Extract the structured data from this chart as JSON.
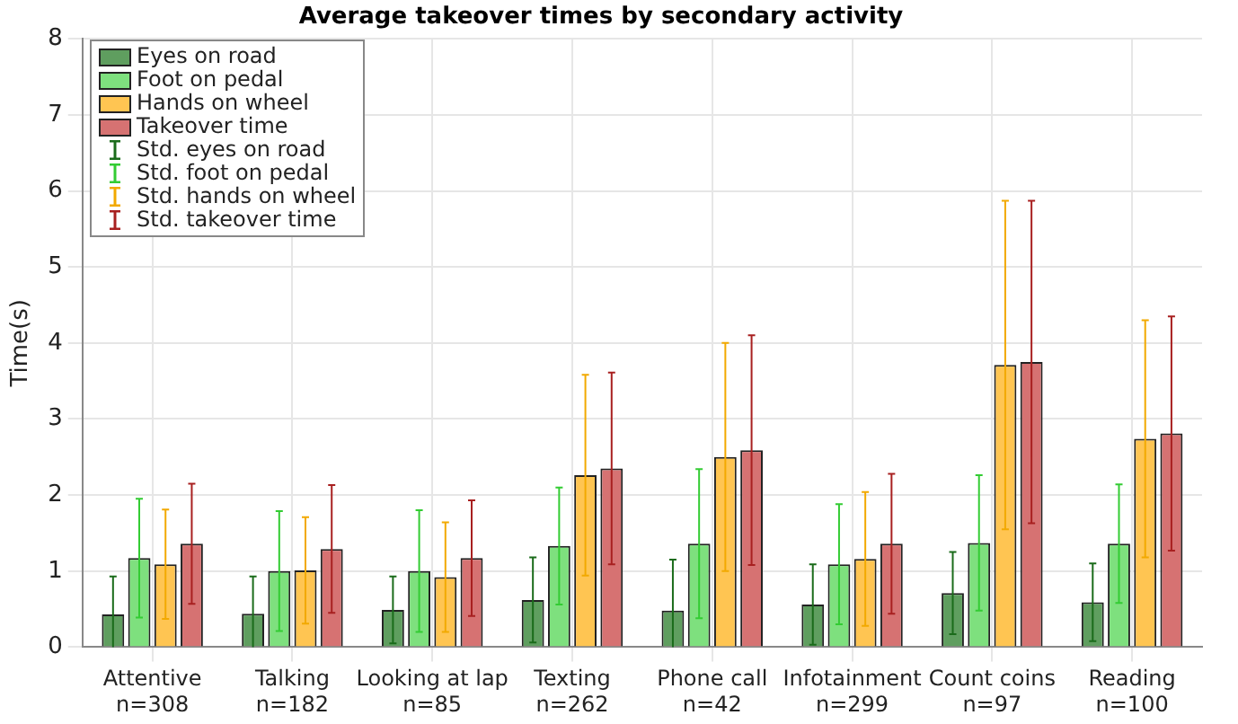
{
  "chart_data": {
    "type": "bar",
    "title": "Average takeover times by secondary activity",
    "ylabel": "Time(s)",
    "categories": [
      "Attentive\nn=308",
      "Talking\nn=182",
      "Looking at lap\nn=85",
      "Texting\nn=262",
      "Phone call\nn=42",
      "Infotainment\nn=299",
      "Count coins\nn=97",
      "Reading\nn=100"
    ],
    "series": [
      {
        "name": "Eyes on road",
        "color": "#5f9e5f",
        "values": [
          0.43,
          0.44,
          0.49,
          0.62,
          0.48,
          0.56,
          0.71,
          0.59
        ],
        "errors": [
          0.5,
          0.49,
          0.44,
          0.56,
          0.67,
          0.53,
          0.54,
          0.51
        ]
      },
      {
        "name": "Foot on pedal",
        "color": "#7ee07e",
        "values": [
          1.17,
          1.0,
          1.0,
          1.33,
          1.36,
          1.09,
          1.37,
          1.36
        ],
        "errors": [
          0.78,
          0.79,
          0.8,
          0.77,
          0.98,
          0.79,
          0.89,
          0.78
        ]
      },
      {
        "name": "Hands on wheel",
        "color": "#ffc552",
        "values": [
          1.09,
          1.01,
          0.92,
          2.26,
          2.5,
          1.16,
          3.71,
          2.74
        ],
        "errors": [
          0.72,
          0.7,
          0.72,
          1.32,
          1.5,
          0.88,
          2.16,
          1.56
        ]
      },
      {
        "name": "Takeover time",
        "color": "#d67272",
        "values": [
          1.36,
          1.29,
          1.17,
          2.35,
          2.59,
          1.36,
          3.75,
          2.81
        ],
        "errors": [
          0.79,
          0.84,
          0.76,
          1.26,
          1.51,
          0.92,
          2.12,
          1.54
        ]
      }
    ],
    "annotations": [
      "Std. eyes on road",
      "Std. foot on pedal",
      "Std. hands on wheel",
      "Std. takeover time"
    ],
    "ylim": [
      0,
      8
    ],
    "yticks": [
      0,
      1,
      2,
      3,
      4,
      5,
      6,
      7,
      8
    ],
    "grid": true,
    "legend": "top left"
  }
}
